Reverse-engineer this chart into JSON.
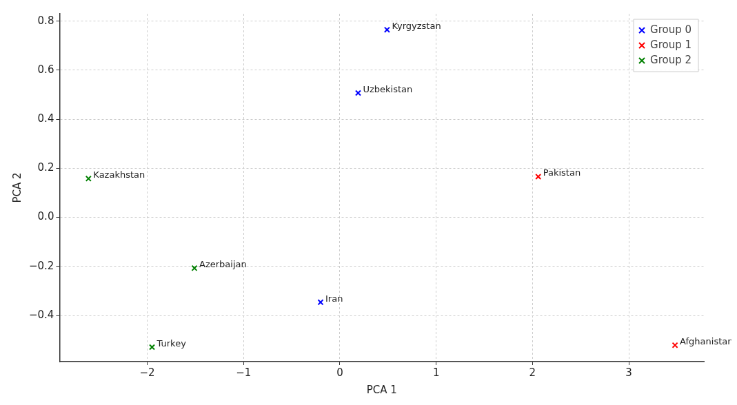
{
  "chart_data": {
    "type": "scatter",
    "xlabel": "PCA 1",
    "ylabel": "PCA 2",
    "series": [
      {
        "name": "Group 0",
        "color": "#0000ff",
        "x": [
          0.49,
          0.19,
          -0.2
        ],
        "values": [
          0.765,
          0.507,
          -0.346
        ]
      },
      {
        "name": "Group 1",
        "color": "#ff0000",
        "x": [
          2.06,
          3.48
        ],
        "values": [
          0.166,
          -0.521
        ]
      },
      {
        "name": "Group 2",
        "color": "#008000",
        "x": [
          -2.61,
          -1.51,
          -1.95
        ],
        "values": [
          0.158,
          -0.207,
          -0.529
        ]
      }
    ],
    "annotations": [
      {
        "text": "Kyrgyzstan",
        "x": 0.49,
        "y": 0.765
      },
      {
        "text": "Uzbekistan",
        "x": 0.19,
        "y": 0.507
      },
      {
        "text": "Iran",
        "x": -0.2,
        "y": -0.346
      },
      {
        "text": "Pakistan",
        "x": 2.06,
        "y": 0.166
      },
      {
        "text": "Afghanistan",
        "x": 3.48,
        "y": -0.521
      },
      {
        "text": "Kazakhstan",
        "x": -2.61,
        "y": 0.158
      },
      {
        "text": "Azerbaijan",
        "x": -1.51,
        "y": -0.207
      },
      {
        "text": "Turkey",
        "x": -1.95,
        "y": -0.529
      }
    ],
    "xlim": [
      -2.91,
      3.78
    ],
    "xticks": [
      {
        "value": -2,
        "label": "−2"
      },
      {
        "value": -1,
        "label": "−1"
      },
      0,
      1,
      2,
      3
    ],
    "ylim": [
      -0.588,
      0.83
    ],
    "yticks": [
      {
        "value": -0.4,
        "label": "−0.4"
      },
      {
        "value": -0.2,
        "label": "−0.2"
      },
      {
        "value": 0,
        "label": "0.0"
      },
      {
        "value": 0.2,
        "label": "0.2"
      },
      {
        "value": 0.4,
        "label": "0.4"
      },
      {
        "value": 0.6,
        "label": "0.6"
      },
      {
        "value": 0.8,
        "label": "0.8"
      }
    ],
    "grid": true,
    "legend": "top right",
    "marker": "cross"
  }
}
